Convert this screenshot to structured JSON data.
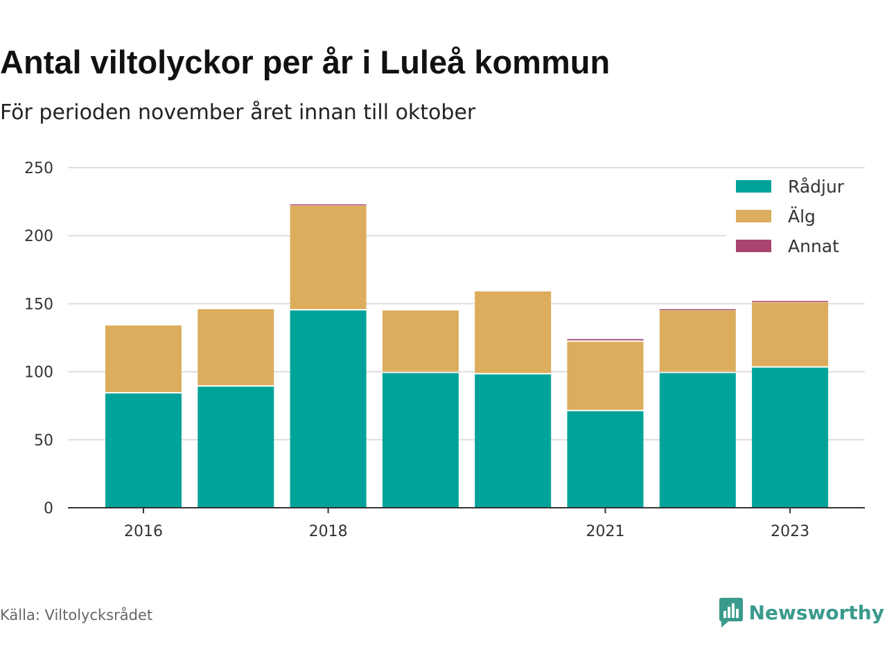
{
  "header": {
    "title": "Antal viltolyckor per år i Luleå kommun",
    "subtitle": "För perioden november året innan till oktober"
  },
  "footer": {
    "source": "Källa: Viltolycksrådet",
    "brand": "Newsworthy",
    "brand_icon": "newsworthy-bar-chart-icon"
  },
  "colors": {
    "grid": "#dddddd",
    "axis": "#333333",
    "tick_text": "#333333"
  },
  "chart_data": {
    "type": "bar",
    "stacked": true,
    "categories": [
      "2016",
      "2017",
      "2018",
      "2019",
      "2020",
      "2021",
      "2022",
      "2023"
    ],
    "x_tick_labels": [
      "2016",
      "2018",
      "2021",
      "2023"
    ],
    "series": [
      {
        "name": "Rådjur",
        "color": "#00a39a",
        "values": [
          84,
          89,
          145,
          99,
          98,
          71,
          99,
          103
        ]
      },
      {
        "name": "Älg",
        "color": "#dbad5c",
        "values": [
          50,
          57,
          77,
          46,
          61,
          51,
          46,
          48
        ]
      },
      {
        "name": "Annat",
        "color": "#a8446d",
        "values": [
          0,
          0,
          1,
          0,
          0,
          2,
          1,
          1
        ]
      }
    ],
    "ylim": [
      0,
      250
    ],
    "yticks": [
      0,
      50,
      100,
      150,
      200,
      250
    ],
    "grid": true,
    "legend_position": "top-right"
  }
}
